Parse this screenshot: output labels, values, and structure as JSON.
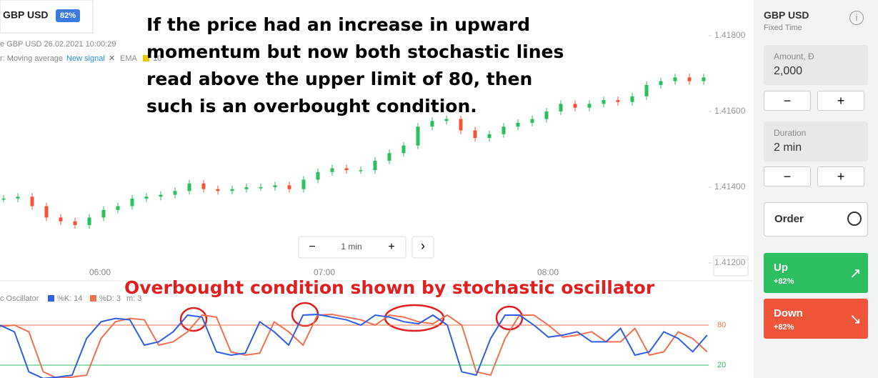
{
  "header": {
    "pair": "GBP USD",
    "payout": "82%"
  },
  "chart_info": {
    "line1": "e GBP USD  26.02.2021 10:00:29",
    "indicator": "r: Moving average",
    "new_signal": "New signal",
    "close": "✕",
    "ema": "EMA",
    "ema_period": "10"
  },
  "annotation_top": "If the price had an increase in upward momentum but now both stochastic lines read above the upper limit of 80, then such is an overbought condition.",
  "annotation_oscillator": "Overbought condition shown by stochastic oscillator",
  "price_axis": {
    "ticks": [
      {
        "value": 1.418,
        "label": "1.41800"
      },
      {
        "value": 1.416,
        "label": "1.41600"
      },
      {
        "value": 1.414,
        "label": "1.41400"
      },
      {
        "value": 1.412,
        "label": "1.41200"
      }
    ]
  },
  "time_axis": {
    "ticks": [
      "06:00",
      "07:00",
      "08:00"
    ]
  },
  "zoom": {
    "minus": "−",
    "interval": "1 min",
    "plus": "+",
    "next": "›"
  },
  "price_closes": [
    1.4137,
    1.41375,
    1.4135,
    1.4132,
    1.4131,
    1.413,
    1.4132,
    1.4134,
    1.4135,
    1.4137,
    1.41375,
    1.4138,
    1.4139,
    1.4141,
    1.41395,
    1.4139,
    1.41395,
    1.414,
    1.414,
    1.41405,
    1.41395,
    1.4142,
    1.4144,
    1.4145,
    1.41445,
    1.41445,
    1.4147,
    1.4149,
    1.4151,
    1.4156,
    1.41575,
    1.4158,
    1.4155,
    1.4153,
    1.4154,
    1.4156,
    1.4157,
    1.4158,
    1.416,
    1.4162,
    1.4161,
    1.4162,
    1.4163,
    1.41625,
    1.4164,
    1.4167,
    1.4168,
    1.4169,
    1.4168,
    1.4169
  ],
  "oscillator": {
    "name": "c Oscillator",
    "k_label": "%K: 14",
    "d_label": "%D: 3",
    "m_label": "m: 3",
    "levels": [
      80,
      20
    ],
    "k": [
      80,
      70,
      10,
      0,
      2,
      5,
      60,
      85,
      90,
      88,
      50,
      55,
      70,
      95,
      92,
      40,
      35,
      38,
      85,
      70,
      50,
      95,
      96,
      92,
      88,
      80,
      95,
      92,
      85,
      82,
      95,
      80,
      10,
      5,
      60,
      95,
      95,
      80,
      62,
      65,
      70,
      55,
      55,
      75,
      35,
      40,
      70,
      60,
      40,
      65
    ],
    "d": [
      78,
      80,
      70,
      10,
      0,
      2,
      5,
      60,
      85,
      90,
      88,
      50,
      55,
      70,
      95,
      92,
      40,
      35,
      38,
      85,
      70,
      50,
      95,
      96,
      92,
      88,
      80,
      95,
      92,
      85,
      82,
      95,
      80,
      10,
      5,
      60,
      95,
      95,
      80,
      62,
      65,
      70,
      55,
      55,
      75,
      35,
      40,
      70,
      60,
      40
    ]
  },
  "panel": {
    "pair": "GBP USD",
    "mode": "Fixed Time",
    "amount_label": "Amount, Đ",
    "amount": "2,000",
    "duration_label": "Duration",
    "duration": "2 min",
    "minus": "−",
    "plus": "+",
    "order": "Order",
    "up": "Up",
    "up_payout": "+82%",
    "down": "Down",
    "down_payout": "+82%"
  }
}
